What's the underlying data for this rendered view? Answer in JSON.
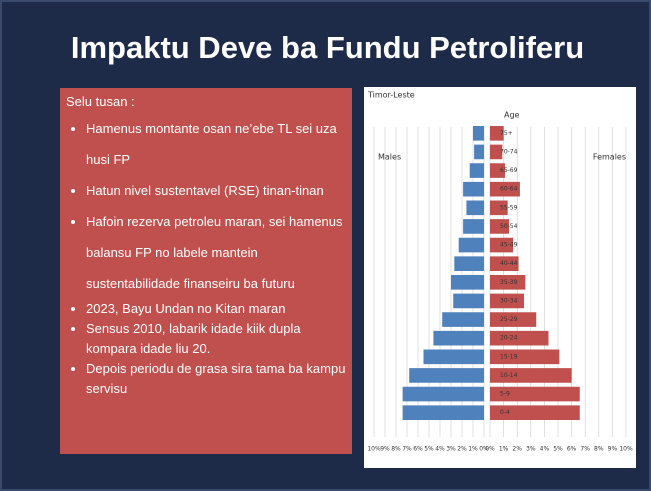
{
  "title": "Impaktu Deve ba Fundu Petroliferu",
  "left_box": {
    "heading": "Selu tusan :",
    "bullets": [
      "Hamenus montante osan ne’ebe TL sei uza husi FP",
      "Hatun nivel sustentavel (RSE) tinan-tinan",
      "Hafoin rezerva petroleu maran, sei hamenus balansu FP no labele mantein sustentabilidade finanseiru ba futuru",
      "2023, Bayu Undan no Kitan maran",
      "Sensus 2010, labarik idade kiik dupla kompara idade liu 20.",
      "Depois periodu de grasa sira tama ba kampu servisu"
    ]
  },
  "chart_data": {
    "type": "population-pyramid",
    "title": "Timor-Leste",
    "category_axis_label": "Age",
    "categories": [
      "75+",
      "70-74",
      "65-69",
      "60-64",
      "55-59",
      "50-54",
      "45-49",
      "40-44",
      "35-39",
      "30-34",
      "25-29",
      "20-24",
      "15-19",
      "10-14",
      "5-9",
      "0-4"
    ],
    "series": [
      {
        "name": "Males",
        "color": "#4f81bd",
        "values": [
          1.0,
          0.9,
          1.3,
          1.9,
          1.6,
          1.9,
          2.3,
          2.7,
          3.0,
          2.8,
          3.8,
          4.6,
          5.5,
          6.8,
          7.4,
          7.4
        ]
      },
      {
        "name": "Females",
        "color": "#c0504d",
        "values": [
          1.0,
          0.9,
          1.1,
          2.2,
          1.3,
          1.4,
          1.7,
          2.1,
          2.6,
          2.5,
          3.4,
          4.3,
          5.1,
          6.0,
          6.6,
          6.6
        ]
      }
    ],
    "xlim": [
      0,
      10
    ],
    "xticks": [
      {
        "value": 0,
        "label": "0%"
      },
      {
        "value": 1,
        "label": "1%"
      },
      {
        "value": 2,
        "label": "2%"
      },
      {
        "value": 3,
        "label": "3%"
      },
      {
        "value": 4,
        "label": "4%"
      },
      {
        "value": 5,
        "label": "5%"
      },
      {
        "value": 6,
        "label": "6%"
      },
      {
        "value": 7,
        "label": "7%"
      },
      {
        "value": 8,
        "label": "8%"
      },
      {
        "value": 9,
        "label": "9%"
      },
      {
        "value": 10,
        "label": "10%"
      }
    ],
    "grid": true
  }
}
